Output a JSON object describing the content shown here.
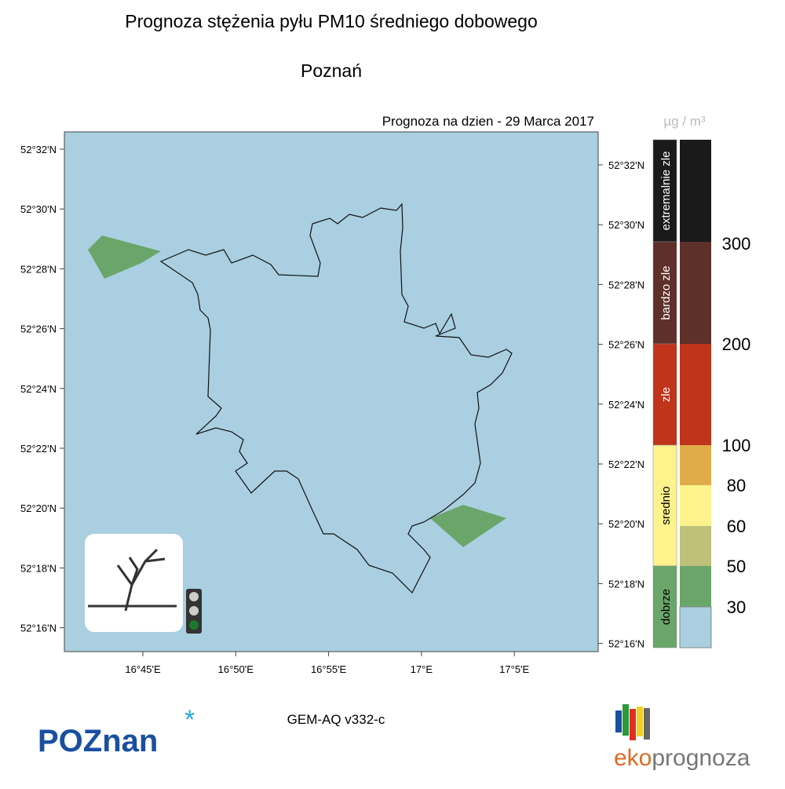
{
  "header": {
    "title": "Prognoza stężenia pyłu PM10 średniego dobowego",
    "city": "Poznań",
    "forecast": "Prognoza na dzien -  29 Marca 2017",
    "unit": "µg / m³"
  },
  "map": {
    "lat_labels_left": [
      "52°32'N",
      "52°30'N",
      "52°28'N",
      "52°26'N",
      "52°24'N",
      "52°22'N",
      "52°20'N",
      "52°18'N",
      "52°16'N"
    ],
    "lat_labels_right": [
      "52°32'N",
      "52°30'N",
      "52°28'N",
      "52°26'N",
      "52°24'N",
      "52°22'N",
      "52°20'N",
      "52°18'N",
      "52°16'N"
    ],
    "lon_labels": [
      "16°45'E",
      "16°50'E",
      "16°55'E",
      "17°E",
      "17°5'E"
    ]
  },
  "legend": {
    "categories": [
      {
        "label": "extremalnie zle",
        "color": "#1a1a1a"
      },
      {
        "label": "bardzo zle",
        "color": "#5e302a"
      },
      {
        "label": "zle",
        "color": "#c0341c"
      },
      {
        "label": "srednio",
        "color": "#fdf28c"
      },
      {
        "label": "dobrze",
        "color": "#6aa66a"
      }
    ],
    "thresholds": [
      "300",
      "200",
      "100",
      "80",
      "60",
      "50",
      "30"
    ]
  },
  "footer": {
    "model": "GEM-AQ v332-c",
    "logo_left": "POZnan",
    "logo_right_a": "eko",
    "logo_right_b": "prognoza"
  }
}
